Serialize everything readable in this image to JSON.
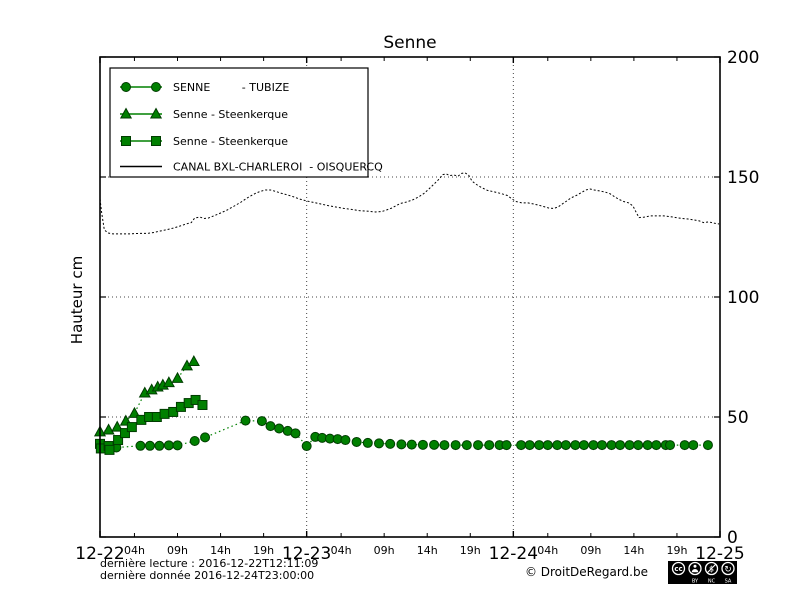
{
  "colors": {
    "series_green": "#008000",
    "series_green_edge": "#003c00",
    "axis": "#000000",
    "grid": "#444444",
    "background": "#ffffff",
    "badge_bg": "#000000",
    "badge_fg": "#ffffff"
  },
  "chart_data": {
    "type": "line",
    "title": "Senne",
    "ylabel": "Hauteur cm",
    "xlabel": "",
    "ylim": [
      0,
      200
    ],
    "xlim_hours": [
      0,
      72
    ],
    "grid": "dotted",
    "legend_position": "upper-left",
    "y_ticks": [
      0,
      50,
      100,
      150,
      200
    ],
    "y_grid": [
      50,
      100,
      150
    ],
    "x_grid_hours": [
      24,
      48
    ],
    "day_ticks": [
      {
        "hour": 0,
        "label": "12-22"
      },
      {
        "hour": 24,
        "label": "12-23"
      },
      {
        "hour": 48,
        "label": "12-24"
      },
      {
        "hour": 72,
        "label": "12-25"
      }
    ],
    "hour_ticks": [
      {
        "hour": 4,
        "label": "04h"
      },
      {
        "hour": 9,
        "label": "09h"
      },
      {
        "hour": 14,
        "label": "14h"
      },
      {
        "hour": 19,
        "label": "19h"
      },
      {
        "hour": 28,
        "label": "04h"
      },
      {
        "hour": 33,
        "label": "09h"
      },
      {
        "hour": 38,
        "label": "14h"
      },
      {
        "hour": 43,
        "label": "19h"
      },
      {
        "hour": 52,
        "label": "04h"
      },
      {
        "hour": 57,
        "label": "09h"
      },
      {
        "hour": 62,
        "label": "14h"
      },
      {
        "hour": 67,
        "label": "19h"
      }
    ],
    "series": [
      {
        "name": "SENNE - TUBIZE",
        "marker": "circle",
        "line": "dotted",
        "color": "#008000",
        "points": [
          [
            0,
            38
          ],
          [
            0.9,
            37.3
          ],
          [
            1.9,
            37.3
          ],
          [
            4.7,
            38
          ],
          [
            5.8,
            38
          ],
          [
            6.9,
            38
          ],
          [
            8,
            38.2
          ],
          [
            9,
            38.2
          ],
          [
            11,
            40
          ],
          [
            12.2,
            41.5
          ],
          [
            16.9,
            48.5
          ],
          [
            18.8,
            48.3
          ],
          [
            19.8,
            46.2
          ],
          [
            20.8,
            45.2
          ],
          [
            21.8,
            44.2
          ],
          [
            22.7,
            43.2
          ],
          [
            24,
            37.9
          ],
          [
            25,
            41.7
          ],
          [
            25.8,
            41.3
          ],
          [
            26.7,
            41
          ],
          [
            27.6,
            40.8
          ],
          [
            28.5,
            40.4
          ],
          [
            29.8,
            39.6
          ],
          [
            31.1,
            39.2
          ],
          [
            32.4,
            39
          ],
          [
            33.7,
            38.8
          ],
          [
            35,
            38.6
          ],
          [
            36.2,
            38.5
          ],
          [
            37.5,
            38.4
          ],
          [
            38.8,
            38.4
          ],
          [
            40,
            38.3
          ],
          [
            41.3,
            38.3
          ],
          [
            42.6,
            38.3
          ],
          [
            43.9,
            38.3
          ],
          [
            45.2,
            38.3
          ],
          [
            46.4,
            38.3
          ],
          [
            47.2,
            38.3
          ],
          [
            48.9,
            38.3
          ],
          [
            49.9,
            38.3
          ],
          [
            51,
            38.3
          ],
          [
            52,
            38.3
          ],
          [
            53.1,
            38.3
          ],
          [
            54.1,
            38.3
          ],
          [
            55.2,
            38.3
          ],
          [
            56.2,
            38.3
          ],
          [
            57.3,
            38.3
          ],
          [
            58.3,
            38.3
          ],
          [
            59.4,
            38.3
          ],
          [
            60.4,
            38.3
          ],
          [
            61.5,
            38.3
          ],
          [
            62.5,
            38.3
          ],
          [
            63.6,
            38.3
          ],
          [
            64.6,
            38.3
          ],
          [
            65.7,
            38.3
          ],
          [
            66.2,
            38.3
          ],
          [
            67.9,
            38.3
          ],
          [
            68.9,
            38.3
          ],
          [
            70.6,
            38.3
          ]
        ]
      },
      {
        "name": "Senne - Steenkerque",
        "marker": "triangle",
        "line": "dotted",
        "color": "#008000",
        "points": [
          [
            0,
            43.8
          ],
          [
            1,
            44.6
          ],
          [
            2,
            45.8
          ],
          [
            3,
            48.3
          ],
          [
            4,
            51.5
          ],
          [
            5.2,
            60
          ],
          [
            6,
            61.3
          ],
          [
            6.7,
            62.5
          ],
          [
            7.3,
            63.3
          ],
          [
            8,
            64.3
          ],
          [
            9,
            66.1
          ],
          [
            10.1,
            71.3
          ],
          [
            10.9,
            73.1
          ]
        ]
      },
      {
        "name": "Senne - Steenkerque",
        "marker": "square",
        "line": "dotted",
        "color": "#008000",
        "points": [
          [
            0,
            38.8
          ],
          [
            0.1,
            36.9
          ],
          [
            1,
            37.9
          ],
          [
            1.1,
            36.3
          ],
          [
            2.1,
            40.4
          ],
          [
            2.9,
            43.3
          ],
          [
            3.7,
            45.8
          ],
          [
            4.8,
            48.8
          ],
          [
            5.7,
            50
          ],
          [
            6.6,
            50
          ],
          [
            7.5,
            51.3
          ],
          [
            8.5,
            52.1
          ],
          [
            9.4,
            54.2
          ],
          [
            10.3,
            55.8
          ],
          [
            11.1,
            57.1
          ],
          [
            11.9,
            55
          ]
        ]
      },
      {
        "name": "CANAL BXL-CHARLEROI - OISQUERCQ",
        "marker": "none",
        "line": "dotted",
        "color": "#000000",
        "points": [
          [
            0,
            140.8
          ],
          [
            0.2,
            135
          ],
          [
            0.5,
            128
          ],
          [
            0.9,
            126.7
          ],
          [
            1.5,
            126.3
          ],
          [
            2.5,
            126.3
          ],
          [
            3.5,
            126.3
          ],
          [
            4.5,
            126.5
          ],
          [
            5.5,
            126.5
          ],
          [
            6.3,
            126.9
          ],
          [
            7,
            127.5
          ],
          [
            7.8,
            128.1
          ],
          [
            8.6,
            128.8
          ],
          [
            9.3,
            129.6
          ],
          [
            10,
            130.4
          ],
          [
            10.6,
            131
          ],
          [
            11,
            132.9
          ],
          [
            11.6,
            133.3
          ],
          [
            12.1,
            132.7
          ],
          [
            12.6,
            132.9
          ],
          [
            13.2,
            133.8
          ],
          [
            14,
            135
          ],
          [
            14.8,
            136.3
          ],
          [
            15.6,
            137.9
          ],
          [
            16.4,
            139.6
          ],
          [
            17.2,
            141.5
          ],
          [
            18,
            143.1
          ],
          [
            18.6,
            144
          ],
          [
            19.2,
            144.6
          ],
          [
            19.8,
            144.6
          ],
          [
            20.4,
            144
          ],
          [
            21,
            143.3
          ],
          [
            21.8,
            142.5
          ],
          [
            22.5,
            141.7
          ],
          [
            23.2,
            140.8
          ],
          [
            24,
            140
          ],
          [
            24.8,
            139.4
          ],
          [
            25.6,
            138.8
          ],
          [
            26.5,
            138.1
          ],
          [
            27.4,
            137.5
          ],
          [
            28.3,
            136.9
          ],
          [
            29.2,
            136.5
          ],
          [
            30.1,
            136
          ],
          [
            31,
            135.8
          ],
          [
            32,
            135.4
          ],
          [
            32.7,
            135.6
          ],
          [
            33.3,
            136.3
          ],
          [
            33.9,
            137.1
          ],
          [
            34.4,
            138.1
          ],
          [
            34.9,
            139
          ],
          [
            35.6,
            139.6
          ],
          [
            36.4,
            140.6
          ],
          [
            37,
            141.7
          ],
          [
            37.6,
            143.1
          ],
          [
            38.2,
            145
          ],
          [
            38.8,
            147.1
          ],
          [
            39.4,
            149.2
          ],
          [
            39.8,
            151
          ],
          [
            40.2,
            151.3
          ],
          [
            40.6,
            150.6
          ],
          [
            41.1,
            150.8
          ],
          [
            41.6,
            150.4
          ],
          [
            42,
            151.5
          ],
          [
            42.4,
            151.7
          ],
          [
            42.8,
            150.8
          ],
          [
            43.2,
            148.3
          ],
          [
            43.7,
            146.9
          ],
          [
            44.3,
            145.6
          ],
          [
            45,
            144.4
          ],
          [
            45.8,
            143.8
          ],
          [
            46.6,
            143.1
          ],
          [
            47.3,
            142.3
          ],
          [
            47.8,
            141
          ],
          [
            48.3,
            139.8
          ],
          [
            49,
            139.2
          ],
          [
            49.7,
            139.2
          ],
          [
            50.3,
            138.8
          ],
          [
            50.9,
            138.3
          ],
          [
            51.5,
            137.7
          ],
          [
            52.1,
            137.1
          ],
          [
            52.7,
            136.9
          ],
          [
            53.2,
            137.5
          ],
          [
            53.7,
            138.8
          ],
          [
            54.2,
            140
          ],
          [
            54.7,
            141.3
          ],
          [
            55.3,
            142.3
          ],
          [
            55.9,
            143.5
          ],
          [
            56.4,
            144.6
          ],
          [
            56.9,
            145
          ],
          [
            57.4,
            144.6
          ],
          [
            58,
            144.2
          ],
          [
            58.6,
            143.8
          ],
          [
            59.2,
            143.1
          ],
          [
            59.7,
            141.9
          ],
          [
            60.2,
            140.8
          ],
          [
            60.8,
            139.8
          ],
          [
            61.4,
            139.2
          ],
          [
            61.9,
            137.9
          ],
          [
            62.3,
            135
          ],
          [
            62.6,
            133.1
          ],
          [
            63.2,
            133.3
          ],
          [
            63.9,
            133.8
          ],
          [
            64.7,
            133.8
          ],
          [
            65.5,
            133.8
          ],
          [
            66.2,
            133.5
          ],
          [
            66.9,
            133.1
          ],
          [
            67.6,
            132.7
          ],
          [
            68.3,
            132.5
          ],
          [
            69,
            132.1
          ],
          [
            69.6,
            131.7
          ],
          [
            70.1,
            131
          ],
          [
            70.7,
            131.3
          ],
          [
            71.3,
            130.8
          ],
          [
            71.9,
            130.4
          ]
        ]
      }
    ]
  },
  "legend": {
    "items": [
      {
        "label": "SENNE         - TUBIZE",
        "marker": "circle"
      },
      {
        "label": "Senne - Steenkerque",
        "marker": "triangle"
      },
      {
        "label": "Senne - Steenkerque",
        "marker": "square"
      },
      {
        "label": "CANAL BXL-CHARLEROI  - OISQUERCQ",
        "marker": "line"
      }
    ]
  },
  "footer": {
    "last_read": "dernière lecture : 2016-12-22T12:11:09",
    "last_data": "dernière donnée  2016-12-24T23:00:00",
    "copyright": "© DroitDeRegard.be",
    "cc_icon": "cc",
    "cc_labels": [
      "BY",
      "NC",
      "SA"
    ]
  }
}
